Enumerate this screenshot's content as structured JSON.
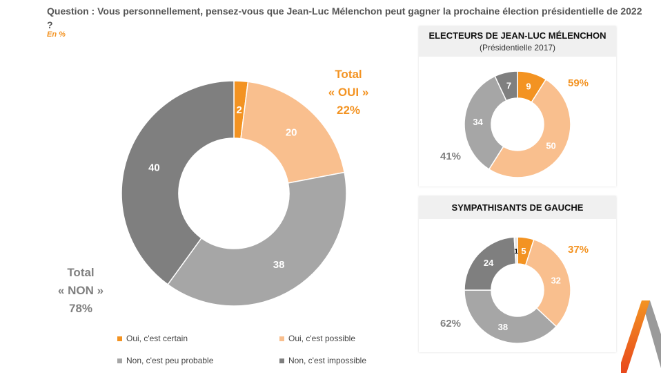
{
  "question": "Question : Vous personnellement, pensez-vous que Jean-Luc Mélenchon peut gagner la prochaine élection présidentielle de 2022 ?",
  "unit": "En %",
  "colors": {
    "certain": "#f39322",
    "possible": "#f9bf8e",
    "peu_probable": "#a6a6a6",
    "impossible": "#7f7f7f",
    "nsp": "#e6e6e6",
    "oui_text": "#f39322",
    "non_text": "#808080"
  },
  "legend": [
    "Oui, c'est certain",
    "Oui, c'est possible",
    "Non, c'est peu probable",
    "Non, c'est impossible"
  ],
  "chart_data": [
    {
      "type": "pie",
      "title": "",
      "categories": [
        "Oui, c'est certain",
        "Oui, c'est possible",
        "Non, c'est peu probable",
        "Non, c'est impossible"
      ],
      "values": [
        2,
        20,
        38,
        40
      ],
      "total_oui": {
        "label_line1": "Total",
        "label_line2": "« OUI »",
        "value": "22%"
      },
      "total_non": {
        "label_line1": "Total",
        "label_line2": "« NON »",
        "value": "78%"
      }
    },
    {
      "type": "pie",
      "title": "ELECTEURS DE JEAN-LUC MÉLENCHON",
      "subtitle": "(Présidentielle 2017)",
      "categories": [
        "Oui, c'est certain",
        "Oui, c'est possible",
        "Non, c'est peu probable",
        "Non, c'est impossible"
      ],
      "values": [
        9,
        50,
        34,
        7
      ],
      "total_oui": "59%",
      "total_non": "41%"
    },
    {
      "type": "pie",
      "title": "SYMPATHISANTS DE GAUCHE",
      "categories": [
        "Oui, c'est certain",
        "Oui, c'est possible",
        "Non, c'est peu probable",
        "Non, c'est impossible",
        ""
      ],
      "values": [
        5,
        32,
        38,
        24,
        1
      ],
      "total_oui": "37%",
      "total_non": "62%"
    }
  ]
}
